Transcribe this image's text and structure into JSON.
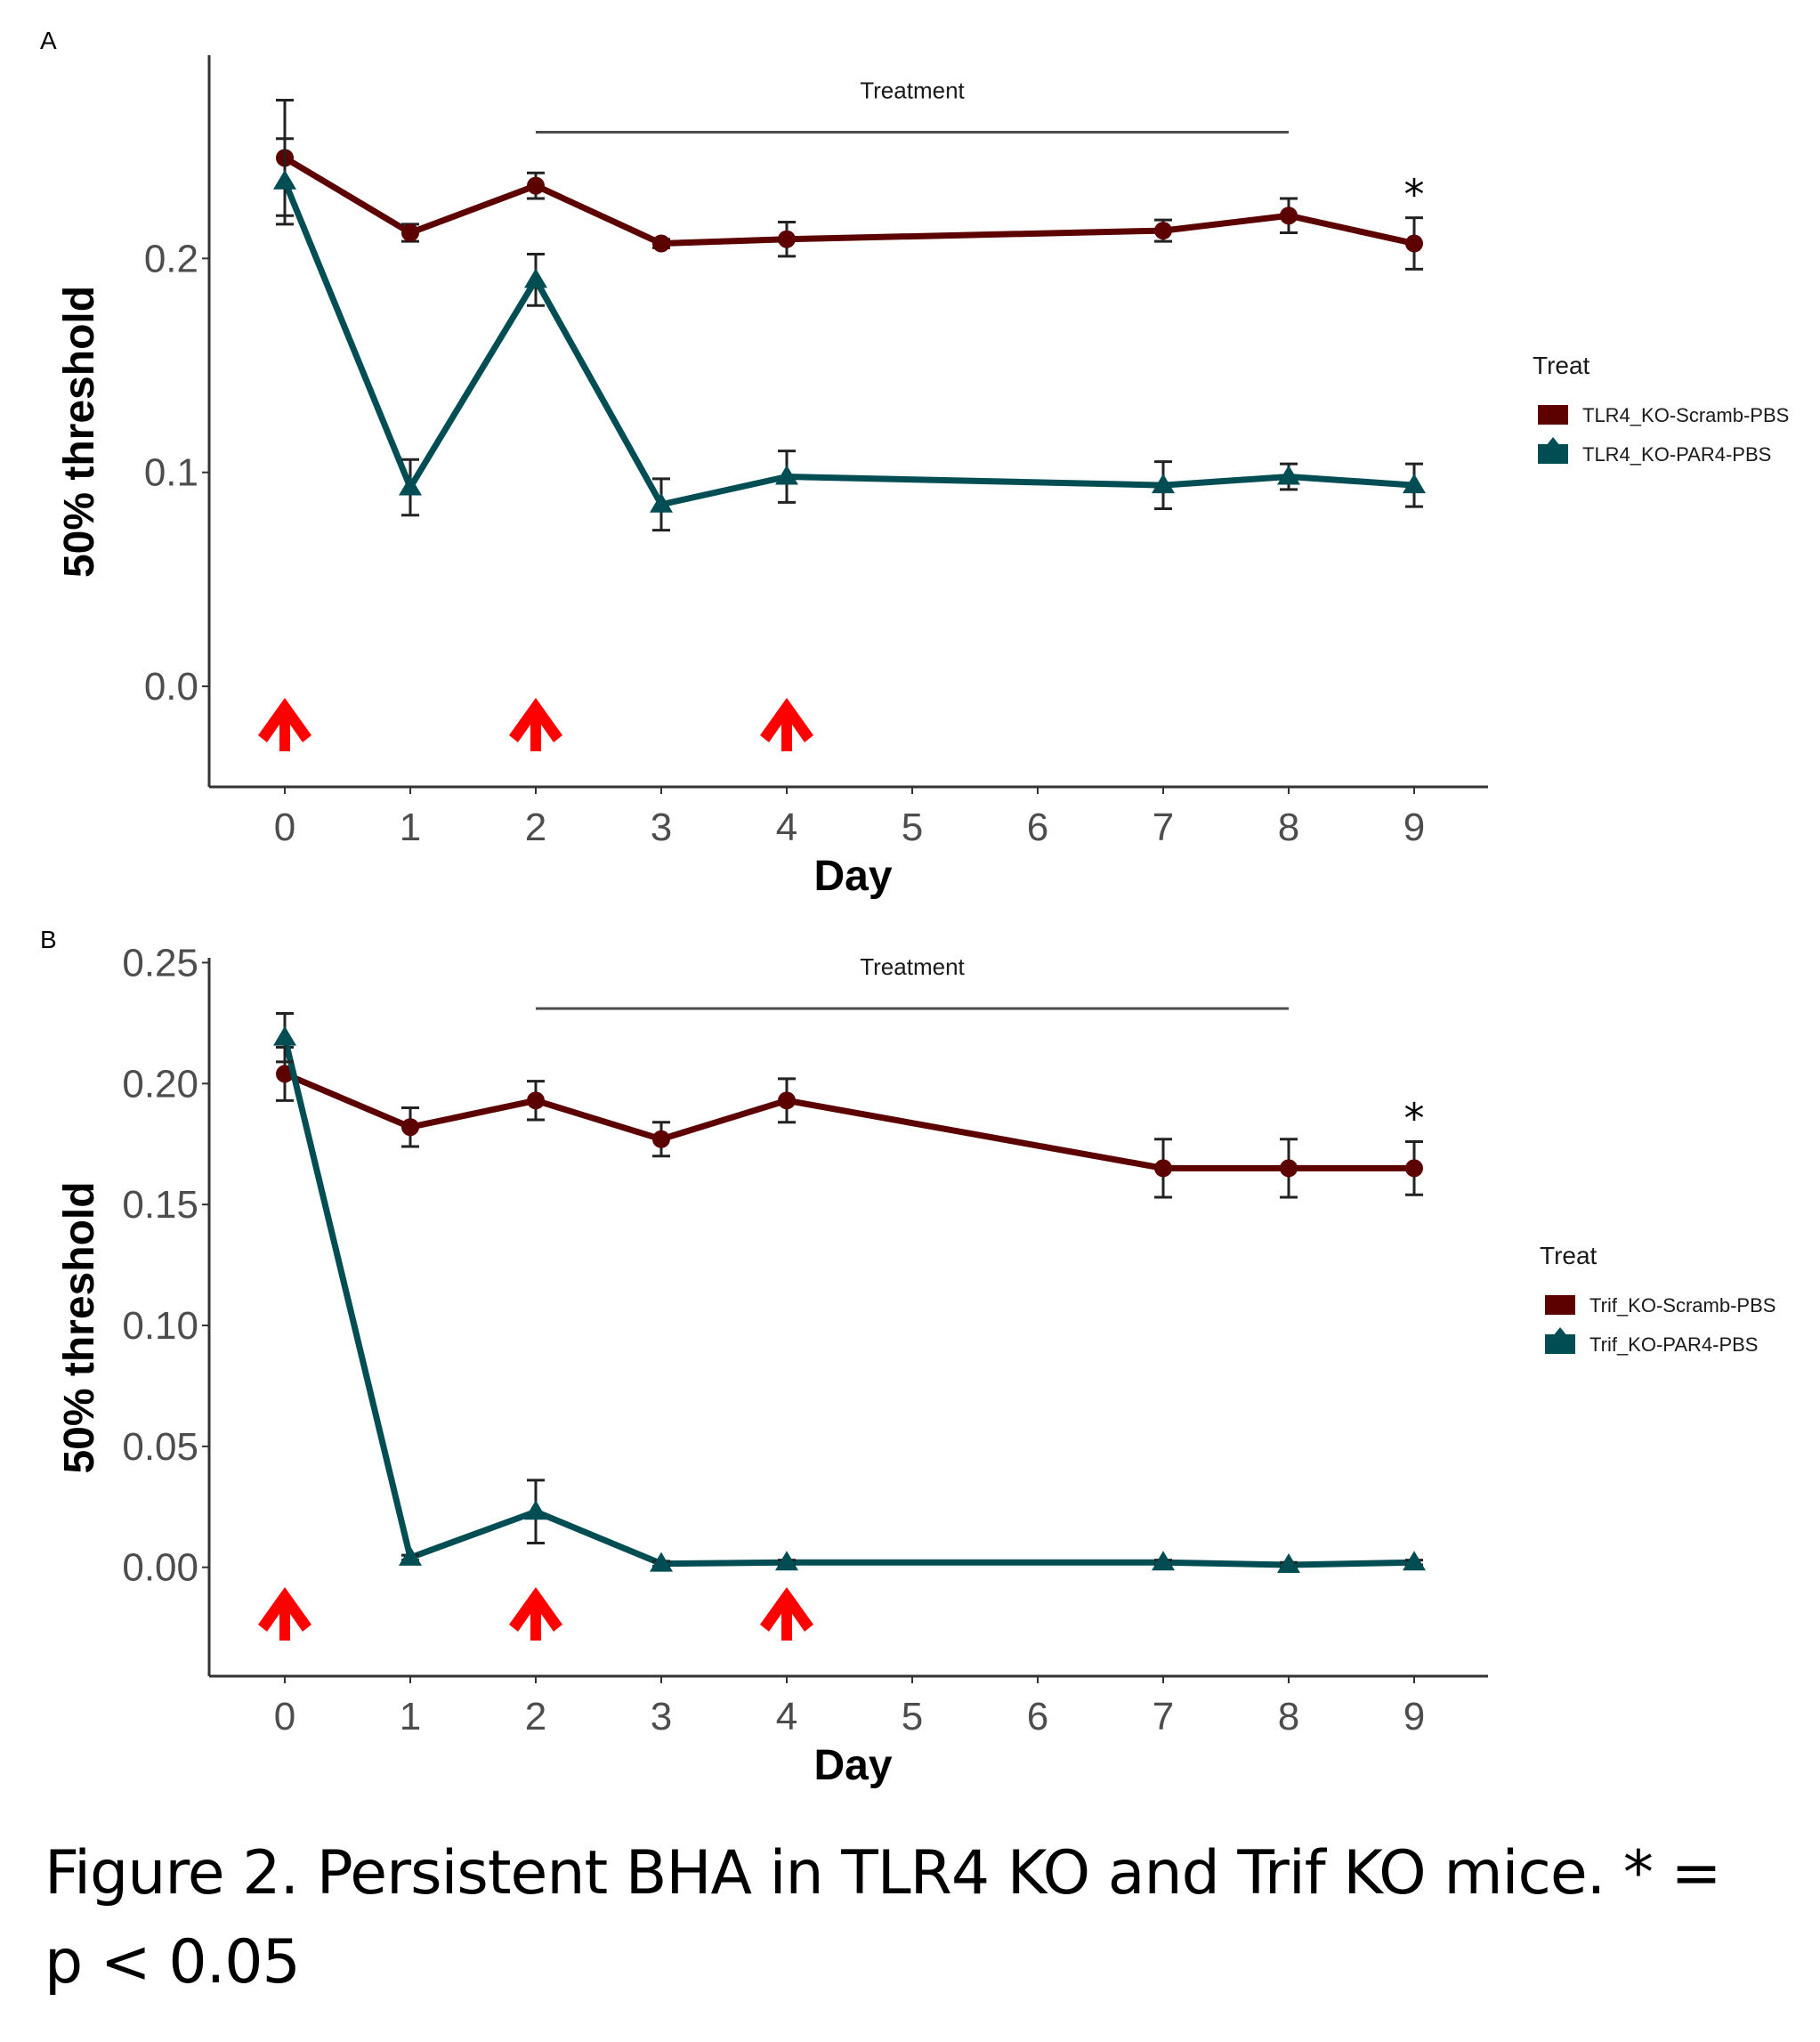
{
  "caption": {
    "line1": "Figure 2. Persistent BHA in TLR4 KO and Trif KO mice. * =",
    "line2": "p < 0.05"
  },
  "chart_data": [
    {
      "panel": "A",
      "type": "line",
      "title": "",
      "xlabel": "Day",
      "ylabel": "50% threshold",
      "categories": [
        "0",
        "1",
        "2",
        "3",
        "4",
        "5",
        "6",
        "7",
        "8",
        "9"
      ],
      "yticks": [
        0.0,
        0.1,
        0.2
      ],
      "ytick_labels": [
        "0.0",
        "0.1",
        "0.2"
      ],
      "ylim": [
        -0.047,
        0.295
      ],
      "grid": false,
      "legend": {
        "title": "Treat",
        "placement": "right"
      },
      "annotations": {
        "treatment_bar": {
          "label": "Treatment",
          "from_day": "2",
          "to_day": "8",
          "value": 0.259
        },
        "injection_arrows_days": [
          "0",
          "2",
          "4"
        ],
        "significance": {
          "day": "9",
          "label": "*"
        }
      },
      "series": [
        {
          "name": "TLR4_KO-Scramb-PBS",
          "color": "#5c0000",
          "marker": "circle",
          "x": [
            "0",
            "1",
            "2",
            "3",
            "4",
            "7",
            "8",
            "9"
          ],
          "values": [
            0.247,
            0.212,
            0.234,
            0.207,
            0.209,
            0.213,
            0.22,
            0.207
          ],
          "errors": [
            0.027,
            0.004,
            0.006,
            0.002,
            0.008,
            0.005,
            0.008,
            0.012
          ]
        },
        {
          "name": "TLR4_KO-PAR4-PBS",
          "color": "#004d54",
          "marker": "triangle",
          "x": [
            "0",
            "1",
            "2",
            "3",
            "4",
            "7",
            "8",
            "9"
          ],
          "values": [
            0.236,
            0.093,
            0.19,
            0.085,
            0.098,
            0.094,
            0.098,
            0.094
          ],
          "errors": [
            0.02,
            0.013,
            0.012,
            0.012,
            0.012,
            0.011,
            0.006,
            0.01
          ]
        }
      ]
    },
    {
      "panel": "B",
      "type": "line",
      "title": "",
      "xlabel": "Day",
      "ylabel": "50% threshold",
      "categories": [
        "0",
        "1",
        "2",
        "3",
        "4",
        "5",
        "6",
        "7",
        "8",
        "9"
      ],
      "yticks": [
        0.0,
        0.05,
        0.1,
        0.15,
        0.2,
        0.25
      ],
      "ytick_labels": [
        "0.00",
        "0.05",
        "0.10",
        "0.15",
        "0.20",
        "0.25"
      ],
      "ylim": [
        -0.045,
        0.252
      ],
      "grid": false,
      "legend": {
        "title": "Treat",
        "placement": "right"
      },
      "annotations": {
        "treatment_bar": {
          "label": "Treatment",
          "from_day": "2",
          "to_day": "8",
          "value": 0.231
        },
        "injection_arrows_days": [
          "0",
          "2",
          "4"
        ],
        "significance": {
          "day": "9",
          "label": "*"
        }
      },
      "series": [
        {
          "name": "Trif_KO-Scramb-PBS",
          "color": "#5c0000",
          "marker": "circle",
          "x": [
            "0",
            "1",
            "2",
            "3",
            "4",
            "7",
            "8",
            "9"
          ],
          "values": [
            0.204,
            0.182,
            0.193,
            0.177,
            0.193,
            0.165,
            0.165,
            0.165
          ],
          "errors": [
            0.011,
            0.008,
            0.008,
            0.007,
            0.009,
            0.012,
            0.012,
            0.011
          ]
        },
        {
          "name": "Trif_KO-PAR4-PBS",
          "color": "#004d54",
          "marker": "triangle",
          "x": [
            "0",
            "1",
            "2",
            "3",
            "4",
            "7",
            "8",
            "9"
          ],
          "values": [
            0.219,
            0.004,
            0.023,
            0.0015,
            0.002,
            0.002,
            0.001,
            0.002
          ],
          "errors": [
            0.01,
            0.001,
            0.013,
            0.001,
            0.001,
            0.001,
            0.001,
            0.001
          ]
        }
      ]
    }
  ]
}
